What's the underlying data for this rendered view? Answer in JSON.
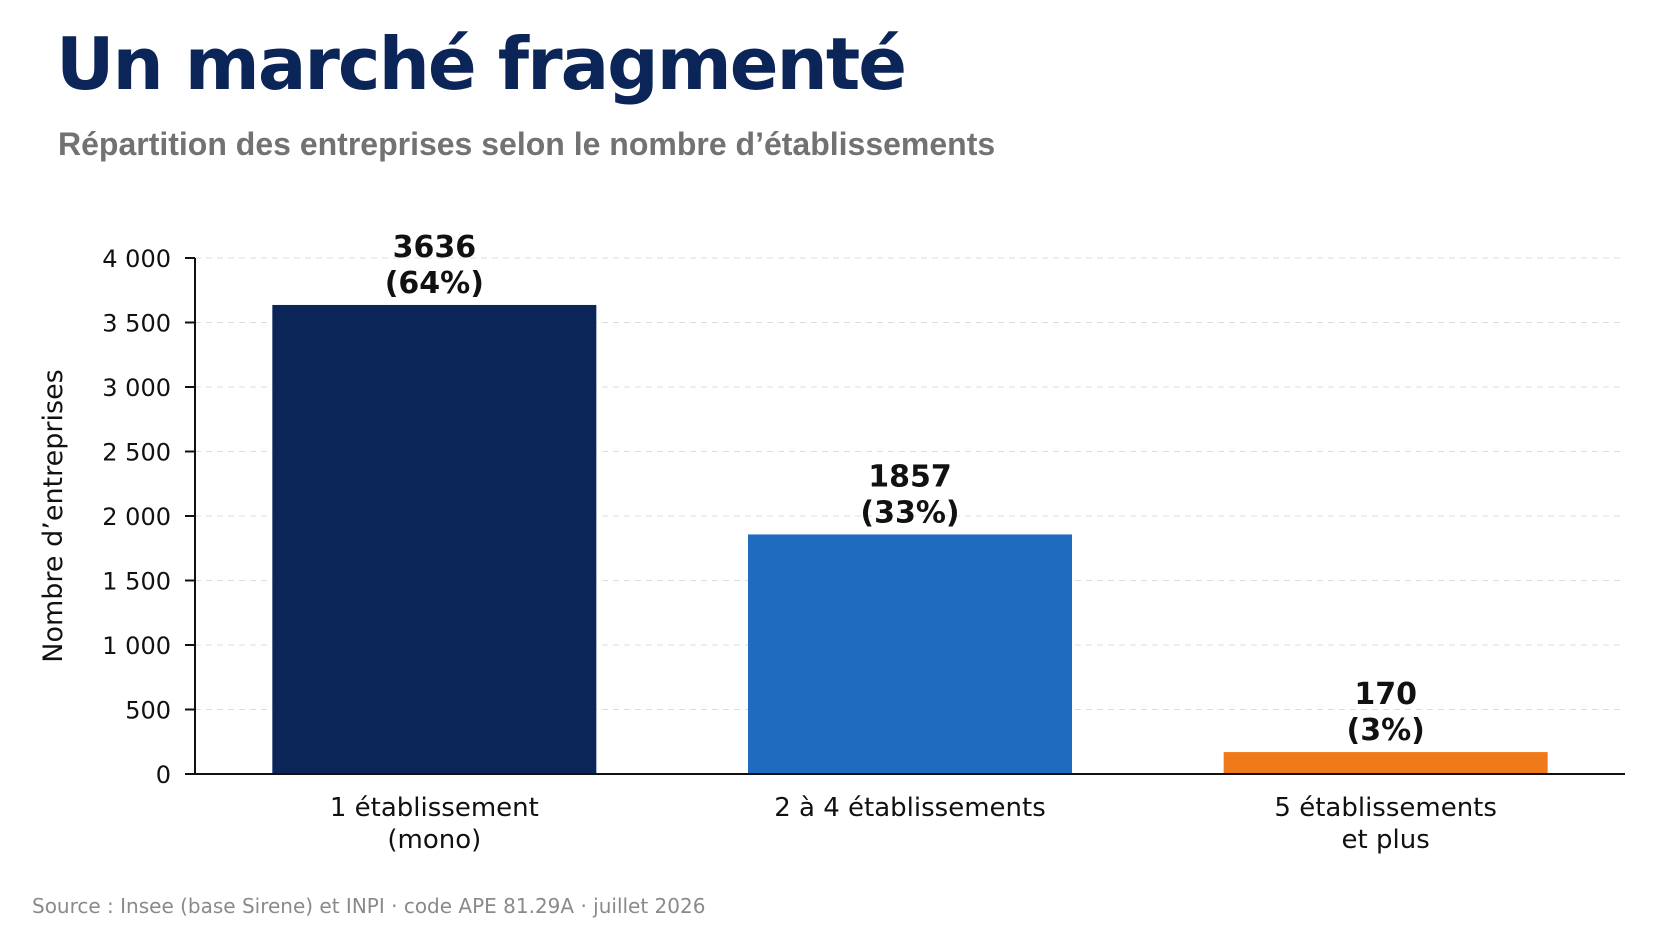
{
  "header": {
    "title": "Un marché fragmenté",
    "subtitle": "Répartition des entreprises selon le nombre d’établissements"
  },
  "footer": {
    "source": "Source : Insee (base Sirene) et INPI · code APE 81.29A · juillet 2026"
  },
  "chart_data": {
    "type": "bar",
    "categories": [
      [
        "1 établissement",
        "(mono)"
      ],
      [
        "2 à 4 établissements"
      ],
      [
        "5 établissements",
        "et plus"
      ]
    ],
    "values": [
      3636,
      1857,
      170
    ],
    "data_labels": [
      [
        "3636",
        "(64%)"
      ],
      [
        "1857",
        "(33%)"
      ],
      [
        "170",
        "(3%)"
      ]
    ],
    "colors": [
      "#0b2559",
      "#1f6bbf",
      "#f07a1a"
    ],
    "ylabel": "Nombre d’entreprises",
    "xlabel": "",
    "ylim": [
      0,
      4000
    ],
    "yticks": [
      0,
      500,
      1000,
      1500,
      2000,
      2500,
      3000,
      3500,
      4000
    ],
    "ytick_labels": [
      "0",
      "500",
      "1 000",
      "1 500",
      "2 000",
      "2 500",
      "3 000",
      "3 500",
      "4 000"
    ],
    "grid": true
  }
}
